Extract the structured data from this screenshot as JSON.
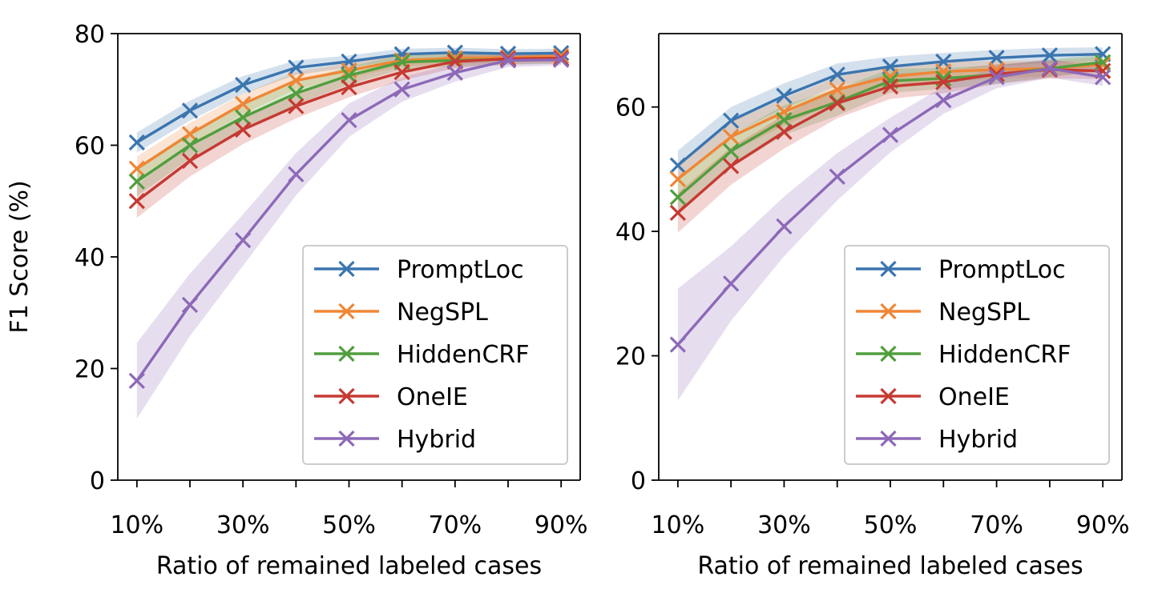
{
  "colors": {
    "PromptLoc": "#3b75af",
    "NegSPL": "#ef8636",
    "HiddenCRF": "#519e3e",
    "OneIE": "#c53a32",
    "Hybrid": "#8d69b8"
  },
  "legend_placement": "lower-right",
  "chart_data": [
    {
      "type": "line",
      "xlabel": "Ratio of remained labeled cases",
      "ylabel": "F1 Score (%)",
      "x": [
        10,
        20,
        30,
        40,
        50,
        60,
        70,
        80,
        90
      ],
      "xticks": [
        "10%",
        "30%",
        "50%",
        "70%",
        "90%"
      ],
      "xtick_values": [
        10,
        30,
        50,
        70,
        90
      ],
      "ylim": [
        0,
        80
      ],
      "yticks": [
        "0",
        "20",
        "40",
        "60",
        "80"
      ],
      "ytick_values": [
        0,
        20,
        40,
        60,
        80
      ],
      "grid": false,
      "series": [
        {
          "name": "PromptLoc",
          "values": [
            60.5,
            66.2,
            70.8,
            73.9,
            75.0,
            76.3,
            76.6,
            76.4,
            76.5
          ],
          "band": [
            1.8,
            1.8,
            1.6,
            1.3,
            1.1,
            1.0,
            0.9,
            0.8,
            0.8
          ]
        },
        {
          "name": "NegSPL",
          "values": [
            55.8,
            62.0,
            67.4,
            71.6,
            73.4,
            75.2,
            75.6,
            75.7,
            76.0
          ],
          "band": [
            2.2,
            2.0,
            1.8,
            1.6,
            1.3,
            1.1,
            1.0,
            0.9,
            0.8
          ]
        },
        {
          "name": "HiddenCRF",
          "values": [
            53.5,
            60.0,
            65.0,
            69.3,
            72.5,
            74.9,
            75.2,
            75.4,
            75.5
          ],
          "band": [
            2.6,
            2.4,
            2.2,
            2.0,
            1.6,
            1.3,
            1.1,
            1.0,
            0.9
          ]
        },
        {
          "name": "OneIE",
          "values": [
            50.0,
            57.2,
            62.8,
            67.0,
            70.4,
            73.1,
            75.0,
            75.5,
            75.6
          ],
          "band": [
            3.0,
            2.8,
            2.6,
            2.2,
            1.8,
            1.5,
            1.2,
            1.0,
            0.9
          ]
        },
        {
          "name": "Hybrid",
          "values": [
            17.8,
            31.4,
            43.0,
            54.8,
            64.5,
            70.0,
            73.0,
            75.2,
            75.3
          ],
          "band": [
            6.8,
            5.6,
            4.6,
            3.8,
            3.0,
            2.2,
            1.6,
            1.2,
            1.0
          ]
        }
      ]
    },
    {
      "type": "line",
      "xlabel": "Ratio of remained labeled cases",
      "ylabel": "",
      "x": [
        10,
        20,
        30,
        40,
        50,
        60,
        70,
        80,
        90
      ],
      "xticks": [
        "10%",
        "30%",
        "50%",
        "70%",
        "90%"
      ],
      "xtick_values": [
        10,
        30,
        50,
        70,
        90
      ],
      "ylim": [
        0,
        71.8
      ],
      "yticks": [
        "0",
        "20",
        "40",
        "60"
      ],
      "ytick_values": [
        0,
        20,
        40,
        60
      ],
      "grid": false,
      "series": [
        {
          "name": "PromptLoc",
          "values": [
            50.6,
            57.8,
            61.8,
            65.2,
            66.5,
            67.3,
            67.9,
            68.3,
            68.5
          ],
          "band": [
            2.4,
            2.2,
            2.0,
            1.8,
            1.6,
            1.4,
            1.3,
            1.2,
            1.1
          ]
        },
        {
          "name": "NegSPL",
          "values": [
            48.4,
            55.2,
            59.2,
            62.8,
            64.9,
            65.7,
            66.0,
            66.2,
            66.8
          ],
          "band": [
            2.6,
            2.4,
            2.2,
            2.0,
            1.8,
            1.6,
            1.4,
            1.3,
            1.2
          ]
        },
        {
          "name": "HiddenCRF",
          "values": [
            45.5,
            52.9,
            57.9,
            60.8,
            64.2,
            64.6,
            65.2,
            66.2,
            67.2
          ],
          "band": [
            2.8,
            2.6,
            2.4,
            2.2,
            1.9,
            1.7,
            1.5,
            1.4,
            1.3
          ]
        },
        {
          "name": "OneIE",
          "values": [
            43.0,
            50.5,
            56.0,
            60.6,
            63.3,
            64.0,
            65.3,
            66.0,
            65.8
          ],
          "band": [
            3.2,
            3.0,
            2.7,
            2.4,
            2.0,
            1.8,
            1.6,
            1.4,
            1.3
          ]
        },
        {
          "name": "Hybrid",
          "values": [
            21.8,
            31.6,
            40.8,
            48.8,
            55.5,
            61.1,
            64.8,
            66.2,
            64.8
          ],
          "band": [
            9.0,
            6.0,
            4.8,
            3.8,
            2.8,
            2.2,
            1.8,
            1.5,
            1.4
          ]
        }
      ]
    }
  ]
}
